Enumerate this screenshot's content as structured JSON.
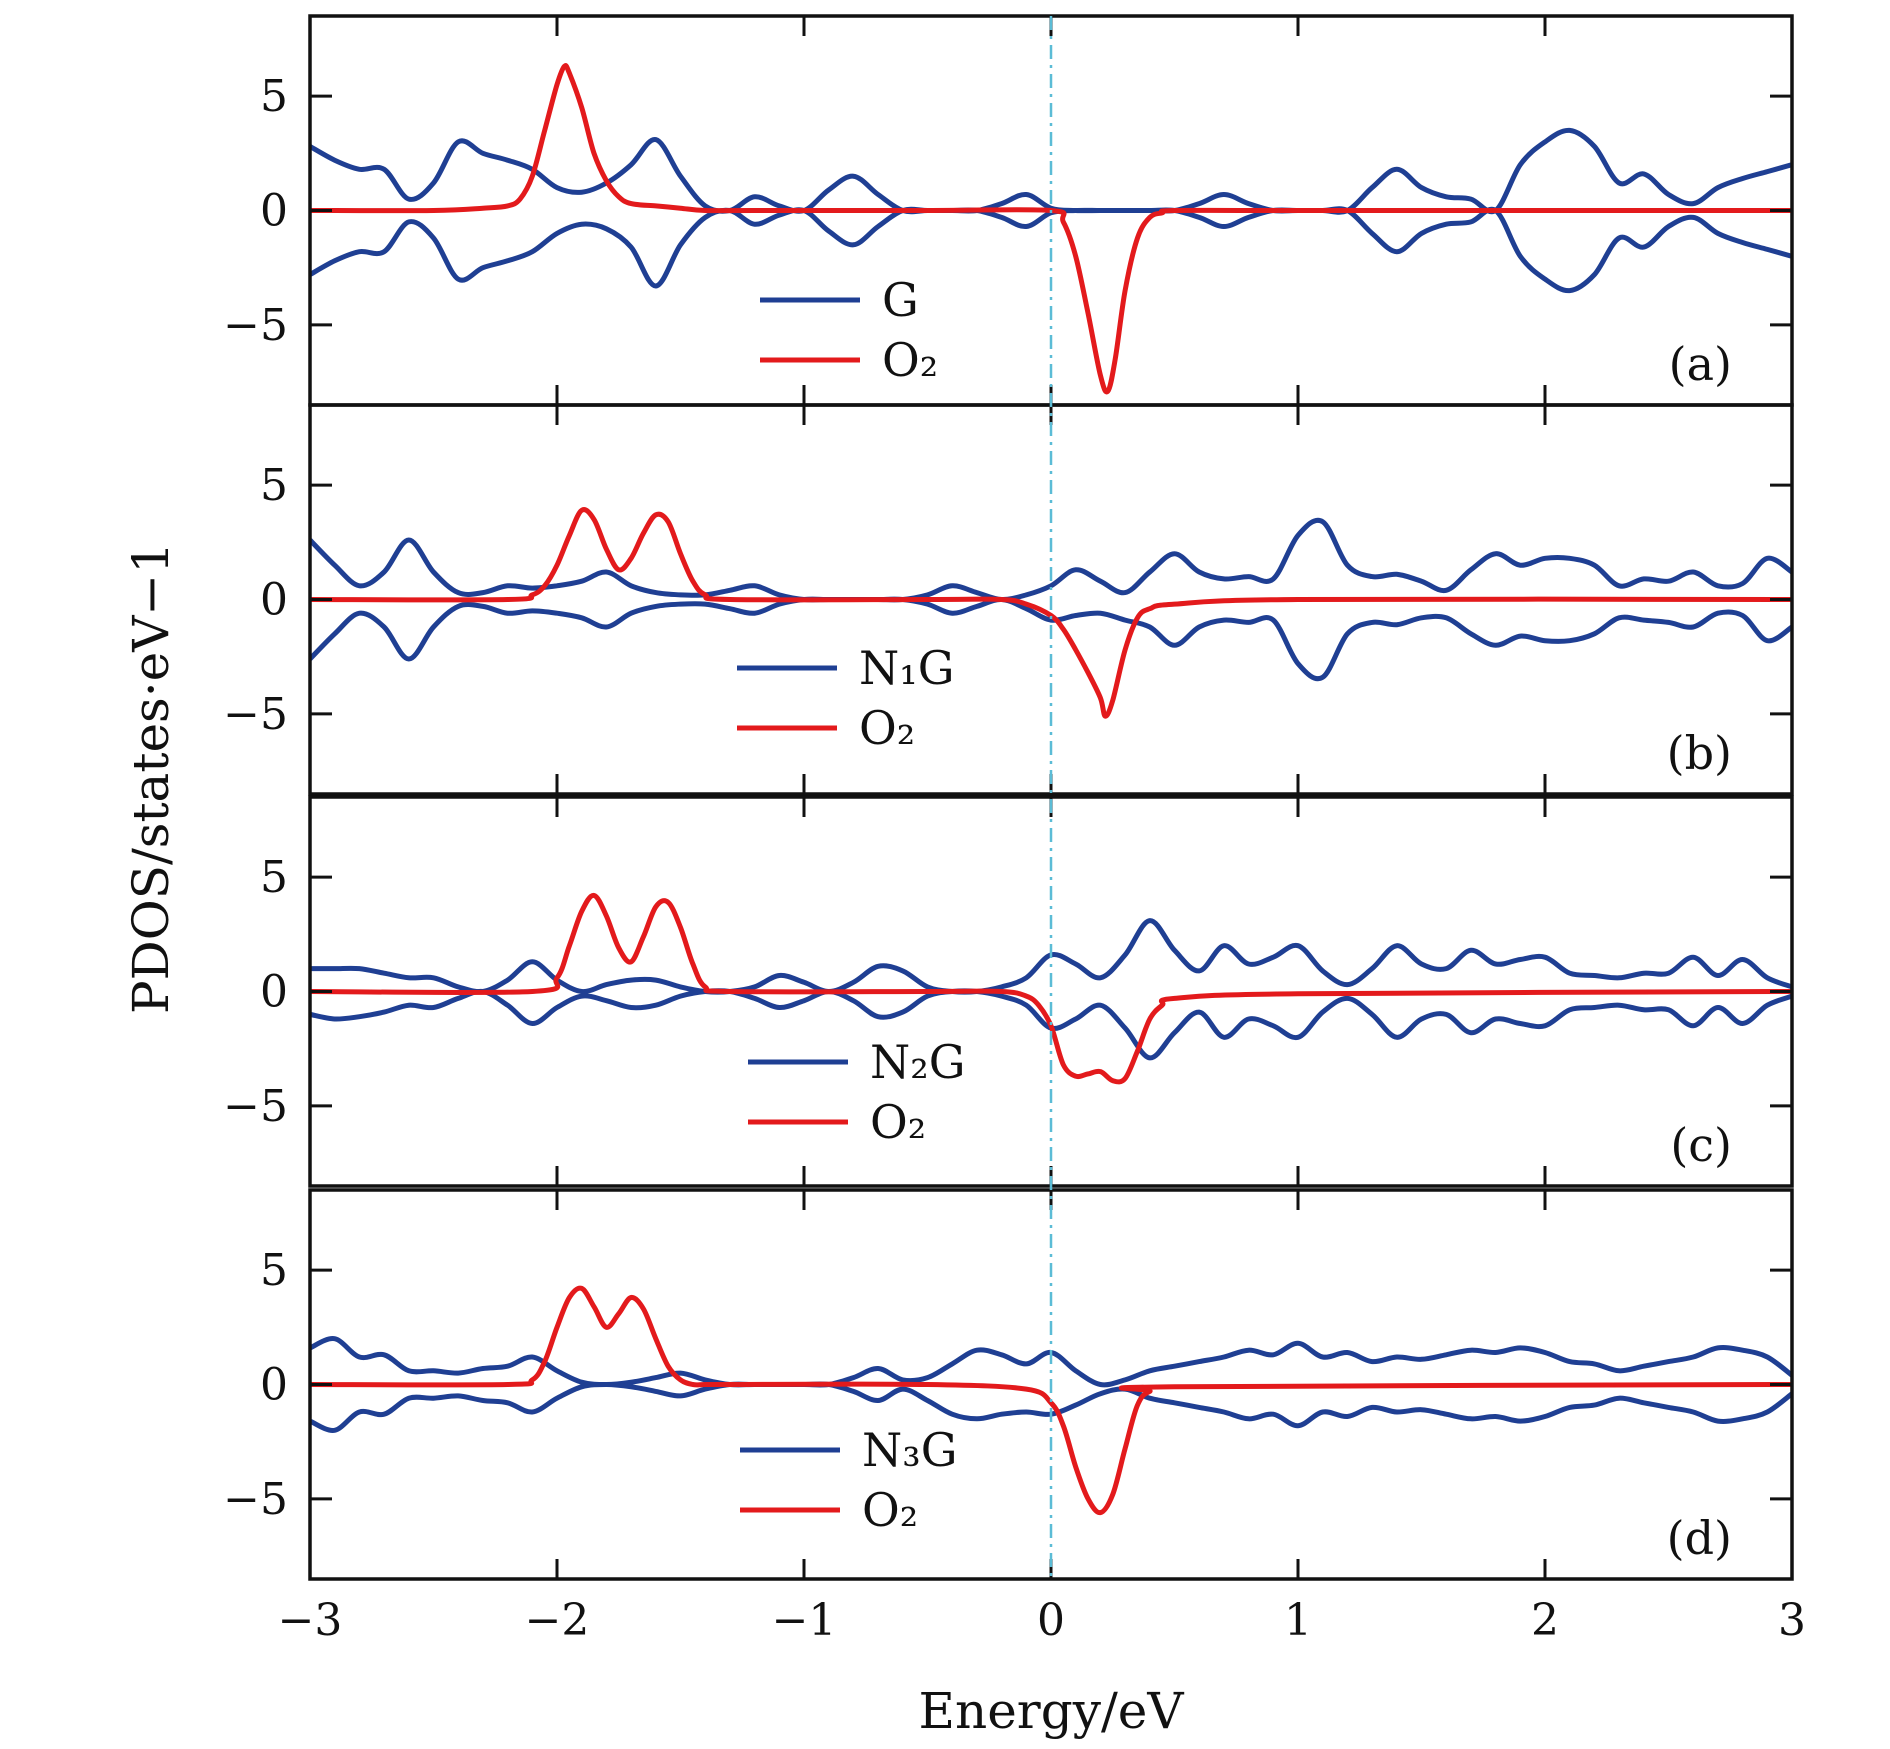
{
  "chart_data": {
    "type": "line",
    "xlabel": "Energy/eV",
    "ylabel": "PDOS/states·eV−1",
    "xlim": [
      -3,
      3
    ],
    "ylim": [
      -8.5,
      8.5
    ],
    "x_ticks": [
      -3,
      -2,
      -1,
      0,
      1,
      2,
      3
    ],
    "x_tick_labels": [
      "−3",
      "−2",
      "−1",
      "0",
      "1",
      "2",
      "3"
    ],
    "y_ticks": [
      5,
      0,
      -5
    ],
    "y_tick_labels": [
      "5",
      "0",
      "−5"
    ],
    "fermi_line_x": 0,
    "colors": {
      "blue": "#1f3f93",
      "red": "#e31a1c",
      "fermi": "#5bbcd6"
    },
    "panels": [
      {
        "tag": "(a)",
        "legend": [
          {
            "label": "G",
            "color": "#1f3f93"
          },
          {
            "label": "O₂",
            "color": "#e31a1c"
          }
        ],
        "blue": {
          "x": [
            -3.0,
            -2.9,
            -2.8,
            -2.7,
            -2.6,
            -2.5,
            -2.4,
            -2.3,
            -2.2,
            -2.1,
            -2.0,
            -1.9,
            -1.8,
            -1.7,
            -1.6,
            -1.5,
            -1.4,
            -1.3,
            -1.2,
            -1.1,
            -1.0,
            -0.9,
            -0.8,
            -0.7,
            -0.6,
            -0.5,
            -0.4,
            -0.3,
            -0.2,
            -0.1,
            0.0,
            0.1,
            0.2,
            0.3,
            0.4,
            0.5,
            0.6,
            0.7,
            0.8,
            0.9,
            1.0,
            1.1,
            1.2,
            1.3,
            1.4,
            1.5,
            1.6,
            1.7,
            1.8,
            1.9,
            2.0,
            2.1,
            2.2,
            2.3,
            2.4,
            2.5,
            2.6,
            2.7,
            2.8,
            2.9,
            3.0
          ],
          "up": [
            2.8,
            2.2,
            1.8,
            1.8,
            0.5,
            1.2,
            3.0,
            2.5,
            2.2,
            1.8,
            1.0,
            0.8,
            1.2,
            2.0,
            3.1,
            1.5,
            0.2,
            0.0,
            0.6,
            0.2,
            0.0,
            0.9,
            1.5,
            0.7,
            0.0,
            0.0,
            0.0,
            0.0,
            0.3,
            0.7,
            0.1,
            0.0,
            0.0,
            0.0,
            0.0,
            0.0,
            0.3,
            0.7,
            0.3,
            0.0,
            0.0,
            0.0,
            0.0,
            1.0,
            1.8,
            1.0,
            0.6,
            0.5,
            0.0,
            2.0,
            3.0,
            3.5,
            2.8,
            1.2,
            1.6,
            0.7,
            0.3,
            1.0,
            1.4,
            1.7,
            2.0
          ],
          "down": [
            -2.8,
            -2.2,
            -1.8,
            -1.8,
            -0.5,
            -1.2,
            -3.0,
            -2.5,
            -2.2,
            -1.8,
            -1.0,
            -0.6,
            -0.8,
            -1.6,
            -3.3,
            -1.5,
            -0.3,
            0.0,
            -0.6,
            -0.2,
            0.0,
            -0.9,
            -1.5,
            -0.7,
            0.0,
            0.0,
            0.0,
            0.0,
            -0.3,
            -0.7,
            -0.1,
            0.0,
            0.0,
            0.0,
            0.0,
            0.0,
            -0.3,
            -0.7,
            -0.3,
            0.0,
            0.0,
            0.0,
            0.0,
            -1.0,
            -1.8,
            -1.0,
            -0.6,
            -0.5,
            0.0,
            -2.0,
            -3.0,
            -3.5,
            -2.8,
            -1.2,
            -1.6,
            -0.7,
            -0.3,
            -1.0,
            -1.4,
            -1.7,
            -2.0
          ]
        },
        "red": {
          "x": [
            -3.0,
            -2.5,
            -2.3,
            -2.2,
            -2.15,
            -2.1,
            -2.05,
            -2.0,
            -1.97,
            -1.95,
            -1.9,
            -1.85,
            -1.8,
            -1.75,
            -1.7,
            -1.6,
            -1.5,
            -1.4,
            -1.2,
            -0.5,
            0.0,
            0.05,
            0.1,
            0.15,
            0.2,
            0.23,
            0.26,
            0.3,
            0.35,
            0.4,
            0.45,
            0.5,
            1.0,
            3.0
          ],
          "y": [
            0.0,
            0.0,
            0.1,
            0.2,
            0.5,
            1.5,
            3.5,
            5.5,
            6.3,
            6.0,
            4.5,
            2.5,
            1.3,
            0.6,
            0.3,
            0.2,
            0.1,
            0.0,
            0.0,
            0.0,
            0.0,
            -0.5,
            -2.0,
            -4.5,
            -7.2,
            -7.9,
            -6.5,
            -3.5,
            -1.2,
            -0.3,
            -0.1,
            0.0,
            0.0,
            0.0
          ]
        }
      },
      {
        "tag": "(b)",
        "legend": [
          {
            "label": "N₁G",
            "color": "#1f3f93"
          },
          {
            "label": "O₂",
            "color": "#e31a1c"
          }
        ],
        "blue": {
          "x": [
            -3.0,
            -2.9,
            -2.8,
            -2.7,
            -2.6,
            -2.5,
            -2.4,
            -2.3,
            -2.2,
            -2.1,
            -2.0,
            -1.9,
            -1.8,
            -1.7,
            -1.6,
            -1.5,
            -1.4,
            -1.3,
            -1.2,
            -1.1,
            -1.0,
            -0.9,
            -0.8,
            -0.7,
            -0.6,
            -0.5,
            -0.4,
            -0.3,
            -0.2,
            -0.1,
            0.0,
            0.1,
            0.2,
            0.3,
            0.4,
            0.5,
            0.6,
            0.7,
            0.8,
            0.9,
            1.0,
            1.1,
            1.2,
            1.3,
            1.4,
            1.5,
            1.6,
            1.7,
            1.8,
            1.9,
            2.0,
            2.1,
            2.2,
            2.3,
            2.4,
            2.5,
            2.6,
            2.7,
            2.8,
            2.9,
            3.0
          ],
          "up": [
            2.6,
            1.5,
            0.6,
            1.2,
            2.6,
            1.2,
            0.3,
            0.3,
            0.6,
            0.5,
            0.6,
            0.8,
            1.2,
            0.6,
            0.3,
            0.2,
            0.2,
            0.4,
            0.6,
            0.2,
            0.0,
            0.0,
            0.0,
            0.0,
            0.0,
            0.2,
            0.6,
            0.3,
            0.0,
            0.2,
            0.6,
            1.3,
            0.8,
            0.3,
            1.2,
            2.0,
            1.2,
            0.9,
            1.0,
            0.9,
            2.8,
            3.4,
            1.5,
            1.0,
            1.1,
            0.8,
            0.4,
            1.3,
            2.0,
            1.5,
            1.8,
            1.8,
            1.5,
            0.6,
            0.9,
            0.8,
            1.2,
            0.6,
            0.7,
            1.8,
            1.2
          ],
          "down": [
            -2.6,
            -1.5,
            -0.6,
            -1.2,
            -2.6,
            -1.2,
            -0.3,
            -0.3,
            -0.6,
            -0.5,
            -0.6,
            -0.8,
            -1.2,
            -0.6,
            -0.3,
            -0.2,
            -0.2,
            -0.4,
            -0.6,
            -0.2,
            0.0,
            0.0,
            0.0,
            0.0,
            0.0,
            -0.2,
            -0.6,
            -0.3,
            0.0,
            -0.4,
            -0.9,
            -0.7,
            -0.6,
            -0.9,
            -1.2,
            -2.0,
            -1.2,
            -0.9,
            -1.0,
            -0.9,
            -2.8,
            -3.4,
            -1.5,
            -1.0,
            -1.1,
            -0.8,
            -0.8,
            -1.5,
            -2.0,
            -1.6,
            -1.8,
            -1.8,
            -1.5,
            -0.8,
            -0.9,
            -1.0,
            -1.2,
            -0.6,
            -0.7,
            -1.8,
            -1.2
          ]
        },
        "red": {
          "x": [
            -3.0,
            -2.2,
            -2.1,
            -2.05,
            -2.0,
            -1.95,
            -1.9,
            -1.85,
            -1.8,
            -1.75,
            -1.7,
            -1.65,
            -1.6,
            -1.55,
            -1.5,
            -1.45,
            -1.4,
            -1.3,
            -0.5,
            -0.2,
            -0.1,
            0.0,
            0.05,
            0.1,
            0.15,
            0.2,
            0.22,
            0.25,
            0.3,
            0.35,
            0.4,
            0.5,
            1.0,
            3.0
          ],
          "y": [
            0.0,
            0.0,
            0.2,
            0.6,
            1.5,
            2.8,
            3.9,
            3.5,
            2.2,
            1.3,
            1.8,
            2.9,
            3.7,
            3.4,
            2.0,
            0.8,
            0.2,
            0.0,
            0.0,
            0.0,
            -0.2,
            -0.7,
            -1.3,
            -2.2,
            -3.2,
            -4.3,
            -5.1,
            -4.4,
            -2.2,
            -0.8,
            -0.4,
            -0.2,
            0.0,
            0.0
          ]
        }
      },
      {
        "tag": "(c)",
        "legend": [
          {
            "label": "N₂G",
            "color": "#1f3f93"
          },
          {
            "label": "O₂",
            "color": "#e31a1c"
          }
        ],
        "blue": {
          "x": [
            -3.0,
            -2.9,
            -2.8,
            -2.7,
            -2.6,
            -2.5,
            -2.4,
            -2.3,
            -2.2,
            -2.1,
            -2.0,
            -1.9,
            -1.8,
            -1.7,
            -1.6,
            -1.5,
            -1.4,
            -1.3,
            -1.2,
            -1.1,
            -1.0,
            -0.9,
            -0.8,
            -0.7,
            -0.6,
            -0.5,
            -0.4,
            -0.3,
            -0.2,
            -0.1,
            0.0,
            0.1,
            0.2,
            0.3,
            0.4,
            0.5,
            0.6,
            0.7,
            0.8,
            0.9,
            1.0,
            1.1,
            1.2,
            1.3,
            1.4,
            1.5,
            1.6,
            1.7,
            1.8,
            1.9,
            2.0,
            2.1,
            2.2,
            2.3,
            2.4,
            2.5,
            2.6,
            2.7,
            2.8,
            2.9,
            3.0
          ],
          "up": [
            1.0,
            1.0,
            1.0,
            0.8,
            0.6,
            0.6,
            0.2,
            0.0,
            0.5,
            1.3,
            0.5,
            0.0,
            0.3,
            0.5,
            0.5,
            0.2,
            0.0,
            0.0,
            0.2,
            0.7,
            0.4,
            0.0,
            0.4,
            1.1,
            0.9,
            0.2,
            0.0,
            0.0,
            0.2,
            0.6,
            1.6,
            1.2,
            0.6,
            1.6,
            3.1,
            1.8,
            0.9,
            2.0,
            1.2,
            1.5,
            2.0,
            0.9,
            0.3,
            1.0,
            2.0,
            1.2,
            1.0,
            1.8,
            1.2,
            1.4,
            1.5,
            0.8,
            0.7,
            0.6,
            0.8,
            0.8,
            1.5,
            0.7,
            1.4,
            0.6,
            0.2
          ],
          "down": [
            -1.0,
            -1.2,
            -1.1,
            -0.9,
            -0.6,
            -0.7,
            -0.3,
            0.0,
            -0.6,
            -1.4,
            -0.7,
            -0.2,
            -0.4,
            -0.7,
            -0.6,
            -0.2,
            0.0,
            0.0,
            -0.3,
            -0.7,
            -0.4,
            0.0,
            -0.4,
            -1.1,
            -0.9,
            -0.2,
            0.0,
            0.0,
            -0.2,
            -0.6,
            -1.6,
            -1.2,
            -0.6,
            -1.6,
            -2.9,
            -1.8,
            -0.9,
            -2.0,
            -1.2,
            -1.5,
            -2.0,
            -0.9,
            -0.3,
            -1.0,
            -2.0,
            -1.2,
            -1.0,
            -1.8,
            -1.2,
            -1.4,
            -1.5,
            -0.8,
            -0.7,
            -0.6,
            -0.8,
            -0.8,
            -1.5,
            -0.7,
            -1.4,
            -0.6,
            -0.2
          ]
        },
        "red": {
          "x": [
            -3.0,
            -2.1,
            -2.0,
            -1.95,
            -1.9,
            -1.85,
            -1.8,
            -1.75,
            -1.7,
            -1.65,
            -1.6,
            -1.55,
            -1.5,
            -1.45,
            -1.4,
            -1.3,
            -0.5,
            -0.2,
            -0.1,
            -0.05,
            0.0,
            0.05,
            0.1,
            0.15,
            0.2,
            0.25,
            0.3,
            0.35,
            0.4,
            0.45,
            0.5,
            1.0,
            3.0
          ],
          "y": [
            0.0,
            0.0,
            0.6,
            2.0,
            3.5,
            4.2,
            3.3,
            1.9,
            1.3,
            2.4,
            3.7,
            3.9,
            2.8,
            1.2,
            0.2,
            0.0,
            0.0,
            0.0,
            -0.2,
            -0.6,
            -1.5,
            -3.2,
            -3.7,
            -3.6,
            -3.5,
            -3.9,
            -3.8,
            -2.6,
            -1.2,
            -0.6,
            -0.3,
            -0.1,
            0.0
          ]
        }
      },
      {
        "tag": "(d)",
        "legend": [
          {
            "label": "N₃G",
            "color": "#1f3f93"
          },
          {
            "label": "O₂",
            "color": "#e31a1c"
          }
        ],
        "blue": {
          "x": [
            -3.0,
            -2.9,
            -2.8,
            -2.7,
            -2.6,
            -2.5,
            -2.4,
            -2.3,
            -2.2,
            -2.1,
            -2.0,
            -1.9,
            -1.8,
            -1.7,
            -1.6,
            -1.5,
            -1.4,
            -1.3,
            -1.2,
            -1.1,
            -1.0,
            -0.9,
            -0.8,
            -0.7,
            -0.6,
            -0.5,
            -0.4,
            -0.3,
            -0.2,
            -0.1,
            0.0,
            0.1,
            0.2,
            0.3,
            0.4,
            0.5,
            0.6,
            0.7,
            0.8,
            0.9,
            1.0,
            1.1,
            1.2,
            1.3,
            1.4,
            1.5,
            1.6,
            1.7,
            1.8,
            1.9,
            2.0,
            2.1,
            2.2,
            2.3,
            2.4,
            2.5,
            2.6,
            2.7,
            2.8,
            2.9,
            3.0
          ],
          "up": [
            1.6,
            2.0,
            1.2,
            1.3,
            0.6,
            0.6,
            0.5,
            0.7,
            0.8,
            1.2,
            0.6,
            0.1,
            0.0,
            0.1,
            0.3,
            0.5,
            0.2,
            0.0,
            0.0,
            0.0,
            0.0,
            0.0,
            0.3,
            0.7,
            0.2,
            0.3,
            0.9,
            1.5,
            1.3,
            0.9,
            1.4,
            0.6,
            0.0,
            0.2,
            0.6,
            0.8,
            1.0,
            1.2,
            1.5,
            1.3,
            1.8,
            1.2,
            1.4,
            1.0,
            1.2,
            1.1,
            1.3,
            1.5,
            1.4,
            1.6,
            1.4,
            1.0,
            0.9,
            0.6,
            0.8,
            1.0,
            1.2,
            1.6,
            1.5,
            1.2,
            0.4
          ],
          "down": [
            -1.6,
            -2.0,
            -1.2,
            -1.3,
            -0.6,
            -0.6,
            -0.5,
            -0.7,
            -0.8,
            -1.2,
            -0.6,
            -0.1,
            0.0,
            -0.1,
            -0.3,
            -0.5,
            -0.2,
            0.0,
            0.0,
            0.0,
            0.0,
            0.0,
            -0.3,
            -0.7,
            -0.2,
            -0.7,
            -1.3,
            -1.5,
            -1.3,
            -1.2,
            -1.3,
            -0.9,
            -0.4,
            -0.2,
            -0.6,
            -0.8,
            -1.0,
            -1.2,
            -1.5,
            -1.3,
            -1.8,
            -1.2,
            -1.4,
            -1.0,
            -1.2,
            -1.1,
            -1.3,
            -1.5,
            -1.4,
            -1.6,
            -1.4,
            -1.0,
            -0.9,
            -0.6,
            -0.8,
            -1.0,
            -1.2,
            -1.6,
            -1.5,
            -1.2,
            -0.4
          ]
        },
        "red": {
          "x": [
            -3.0,
            -2.2,
            -2.1,
            -2.05,
            -2.0,
            -1.95,
            -1.9,
            -1.85,
            -1.8,
            -1.75,
            -1.7,
            -1.65,
            -1.6,
            -1.55,
            -1.5,
            -1.45,
            -1.4,
            -1.3,
            -0.5,
            -0.1,
            0.0,
            0.05,
            0.1,
            0.15,
            0.2,
            0.25,
            0.3,
            0.35,
            0.4,
            0.5,
            3.0
          ],
          "y": [
            0.0,
            0.0,
            0.2,
            1.0,
            2.5,
            3.8,
            4.2,
            3.4,
            2.5,
            3.1,
            3.8,
            3.3,
            2.0,
            0.8,
            0.2,
            0.0,
            0.0,
            0.0,
            0.0,
            -0.2,
            -0.8,
            -1.8,
            -3.6,
            -5.0,
            -5.6,
            -4.8,
            -2.8,
            -0.9,
            -0.3,
            -0.1,
            0.0
          ]
        }
      }
    ]
  }
}
